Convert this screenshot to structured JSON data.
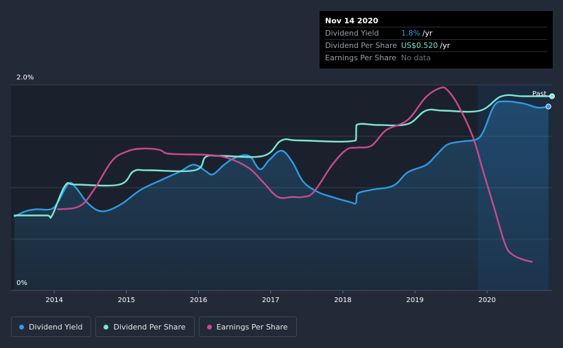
{
  "tooltip": {
    "date": "Nov 14 2020",
    "rows": [
      {
        "label": "Dividend Yield",
        "value": "1.8%",
        "unit": "/yr"
      },
      {
        "label": "Dividend Per Share",
        "value": "US$0.520",
        "unit": "/yr"
      },
      {
        "label": "Earnings Per Share",
        "value": "No data",
        "unit": ""
      }
    ]
  },
  "legend": [
    {
      "label": "Dividend Yield",
      "color": "#2e9be6"
    },
    {
      "label": "Dividend Per Share",
      "color": "#7de8d5"
    },
    {
      "label": "Earnings Per Share",
      "color": "#c94a8f"
    }
  ],
  "chart_data": {
    "type": "line",
    "past_label": "Past",
    "y_tick_labels": [
      "2.0%",
      "0%"
    ],
    "ylim": [
      0,
      2.0
    ],
    "xlim": [
      2013.4,
      2020.9
    ],
    "past_region_start": 2019.87,
    "x_ticks": [
      {
        "label": "2014",
        "x": 2014
      },
      {
        "label": "2015",
        "x": 2015
      },
      {
        "label": "2016",
        "x": 2016
      },
      {
        "label": "2017",
        "x": 2017
      },
      {
        "label": "2018",
        "x": 2018
      },
      {
        "label": "2019",
        "x": 2019
      },
      {
        "label": "2020",
        "x": 2020
      }
    ],
    "grid": true,
    "legend_position": "bottom-left",
    "series": [
      {
        "name": "Dividend Yield",
        "color": "#2e9be6",
        "area": true,
        "points": [
          [
            2013.45,
            0.72
          ],
          [
            2013.6,
            0.77
          ],
          [
            2013.75,
            0.79
          ],
          [
            2013.95,
            0.79
          ],
          [
            2014.05,
            0.86
          ],
          [
            2014.2,
            1.04
          ],
          [
            2014.3,
            1.0
          ],
          [
            2014.45,
            0.86
          ],
          [
            2014.6,
            0.78
          ],
          [
            2014.75,
            0.78
          ],
          [
            2014.95,
            0.85
          ],
          [
            2015.2,
            0.98
          ],
          [
            2015.5,
            1.08
          ],
          [
            2015.75,
            1.16
          ],
          [
            2015.9,
            1.22
          ],
          [
            2016.0,
            1.21
          ],
          [
            2016.1,
            1.16
          ],
          [
            2016.2,
            1.13
          ],
          [
            2016.35,
            1.22
          ],
          [
            2016.5,
            1.29
          ],
          [
            2016.7,
            1.31
          ],
          [
            2016.85,
            1.18
          ],
          [
            2016.98,
            1.27
          ],
          [
            2017.15,
            1.36
          ],
          [
            2017.3,
            1.25
          ],
          [
            2017.45,
            1.06
          ],
          [
            2017.65,
            0.96
          ],
          [
            2017.85,
            0.91
          ],
          [
            2018.1,
            0.86
          ],
          [
            2018.18,
            0.85
          ],
          [
            2018.2,
            0.94
          ],
          [
            2018.4,
            0.98
          ],
          [
            2018.7,
            1.02
          ],
          [
            2018.9,
            1.15
          ],
          [
            2019.15,
            1.22
          ],
          [
            2019.3,
            1.32
          ],
          [
            2019.45,
            1.42
          ],
          [
            2019.65,
            1.45
          ],
          [
            2019.85,
            1.47
          ],
          [
            2019.95,
            1.55
          ],
          [
            2020.1,
            1.8
          ],
          [
            2020.25,
            1.84
          ],
          [
            2020.5,
            1.82
          ],
          [
            2020.7,
            1.78
          ],
          [
            2020.85,
            1.79
          ]
        ]
      },
      {
        "name": "Dividend Per Share",
        "color": "#7de8d5",
        "area": false,
        "points": [
          [
            2013.45,
            0.73
          ],
          [
            2013.9,
            0.73
          ],
          [
            2013.97,
            0.73
          ],
          [
            2014.15,
            1.02
          ],
          [
            2014.3,
            1.03
          ],
          [
            2014.9,
            1.03
          ],
          [
            2015.1,
            1.16
          ],
          [
            2015.3,
            1.17
          ],
          [
            2015.95,
            1.17
          ],
          [
            2016.1,
            1.3
          ],
          [
            2016.3,
            1.31
          ],
          [
            2016.9,
            1.31
          ],
          [
            2017.15,
            1.46
          ],
          [
            2017.4,
            1.46
          ],
          [
            2018.18,
            1.46
          ],
          [
            2018.19,
            1.61
          ],
          [
            2018.5,
            1.61
          ],
          [
            2018.9,
            1.62
          ],
          [
            2019.15,
            1.75
          ],
          [
            2019.4,
            1.75
          ],
          [
            2019.9,
            1.75
          ],
          [
            2020.2,
            1.89
          ],
          [
            2020.5,
            1.89
          ],
          [
            2020.9,
            1.89
          ]
        ]
      },
      {
        "name": "Earnings Per Share",
        "color": "#c94a8f",
        "area": false,
        "points": [
          [
            2014.05,
            0.79
          ],
          [
            2014.35,
            0.82
          ],
          [
            2014.55,
            0.98
          ],
          [
            2014.8,
            1.26
          ],
          [
            2015.0,
            1.35
          ],
          [
            2015.2,
            1.38
          ],
          [
            2015.45,
            1.37
          ],
          [
            2015.6,
            1.33
          ],
          [
            2016.1,
            1.32
          ],
          [
            2016.4,
            1.29
          ],
          [
            2016.7,
            1.19
          ],
          [
            2016.9,
            1.05
          ],
          [
            2017.1,
            0.91
          ],
          [
            2017.3,
            0.91
          ],
          [
            2017.45,
            0.91
          ],
          [
            2017.6,
            0.96
          ],
          [
            2017.85,
            1.22
          ],
          [
            2018.05,
            1.37
          ],
          [
            2018.2,
            1.39
          ],
          [
            2018.4,
            1.41
          ],
          [
            2018.6,
            1.56
          ],
          [
            2018.9,
            1.66
          ],
          [
            2019.15,
            1.88
          ],
          [
            2019.35,
            1.97
          ],
          [
            2019.45,
            1.95
          ],
          [
            2019.6,
            1.8
          ],
          [
            2019.8,
            1.5
          ],
          [
            2019.95,
            1.15
          ],
          [
            2020.1,
            0.8
          ],
          [
            2020.25,
            0.45
          ],
          [
            2020.35,
            0.35
          ],
          [
            2020.5,
            0.3
          ],
          [
            2020.62,
            0.28
          ]
        ]
      }
    ]
  }
}
